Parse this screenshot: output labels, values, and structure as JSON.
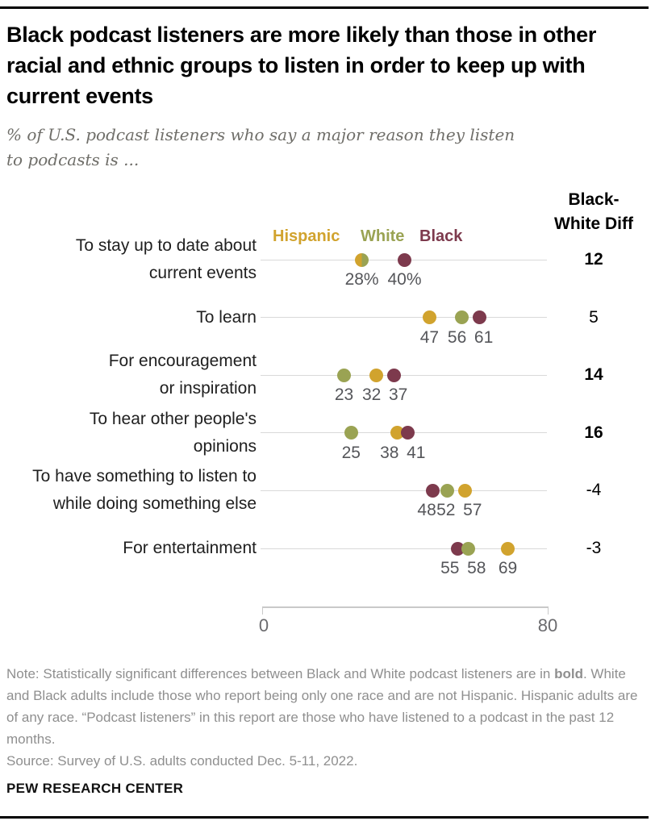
{
  "header": {
    "title": "Black podcast listeners are more likely than those in other racial and ethnic groups to listen in order to keep up with current events",
    "subtitle": "% of U.S. podcast listeners who say a major reason they listen to podcasts is ..."
  },
  "legend": {
    "hispanic": "Hispanic",
    "white": "White",
    "black": "Black"
  },
  "chart_data": {
    "type": "scatter",
    "title": "Black podcast listeners are more likely than those in other racial and ethnic groups to listen in order to keep up with current events",
    "subtitle": "% of U.S. podcast listeners who say a major reason they listen to podcasts is ...",
    "series_names": [
      "Hispanic",
      "White",
      "Black"
    ],
    "colors": {
      "hispanic": "#d1a32e",
      "white": "#9aa353",
      "black": "#7d3a4d"
    },
    "axis": {
      "min": 0,
      "max": 80,
      "tick_labels": [
        "0",
        "80"
      ],
      "orientation": "horizontal",
      "grid": "per-row lines"
    },
    "diff_header": [
      "Black-",
      "White Diff"
    ],
    "rows": [
      {
        "label_lines": [
          "To stay up to date about",
          "current events"
        ],
        "hispanic": 28,
        "white": 28,
        "black": 40,
        "value_labels": [
          {
            "text": "28%",
            "v": 28
          },
          {
            "text": "40%",
            "v": 40
          }
        ],
        "diff": "12",
        "diff_bold": true
      },
      {
        "label_lines": [
          "To learn"
        ],
        "hispanic": 47,
        "white": 56,
        "black": 61,
        "value_labels": [
          {
            "text": "47",
            "v": 47
          },
          {
            "text": "56",
            "v": 56
          },
          {
            "text": "61",
            "v": 61
          }
        ],
        "diff": "5",
        "diff_bold": false
      },
      {
        "label_lines": [
          "For encouragement",
          "or inspiration"
        ],
        "hispanic": 32,
        "white": 23,
        "black": 37,
        "value_labels": [
          {
            "text": "23",
            "v": 23
          },
          {
            "text": "32",
            "v": 32
          },
          {
            "text": "37",
            "v": 37
          }
        ],
        "diff": "14",
        "diff_bold": true
      },
      {
        "label_lines": [
          "To hear other people's",
          "opinions"
        ],
        "hispanic": 38,
        "white": 25,
        "black": 41,
        "value_labels": [
          {
            "text": "25",
            "v": 25
          },
          {
            "text": "38",
            "v": 38
          },
          {
            "text": "41",
            "v": 41
          }
        ],
        "diff": "16",
        "diff_bold": true
      },
      {
        "label_lines": [
          "To have something to listen to",
          "while doing something else"
        ],
        "hispanic": 57,
        "white": 52,
        "black": 48,
        "value_labels": [
          {
            "text": "48",
            "v": 48
          },
          {
            "text": "52",
            "v": 52
          },
          {
            "text": "57",
            "v": 57
          }
        ],
        "diff": "-4",
        "diff_bold": false
      },
      {
        "label_lines": [
          "For entertainment"
        ],
        "hispanic": 69,
        "white": 58,
        "black": 55,
        "value_labels": [
          {
            "text": "55",
            "v": 55
          },
          {
            "text": "58",
            "v": 58
          },
          {
            "text": "69",
            "v": 69
          }
        ],
        "diff": "-3",
        "diff_bold": false
      }
    ]
  },
  "notes": {
    "part1": "Note: Statistically significant differences between Black and White podcast listeners are in ",
    "bold_word": "bold",
    "part2": ". White and Black adults include those who report being only one race and are not Hispanic. Hispanic adults are of any race. “Podcast listeners” in this report are those who have listened to a podcast in the past 12 months.",
    "source": "Source: Survey of U.S. adults conducted Dec. 5-11, 2022."
  },
  "footer": {
    "brand": "PEW RESEARCH CENTER"
  }
}
